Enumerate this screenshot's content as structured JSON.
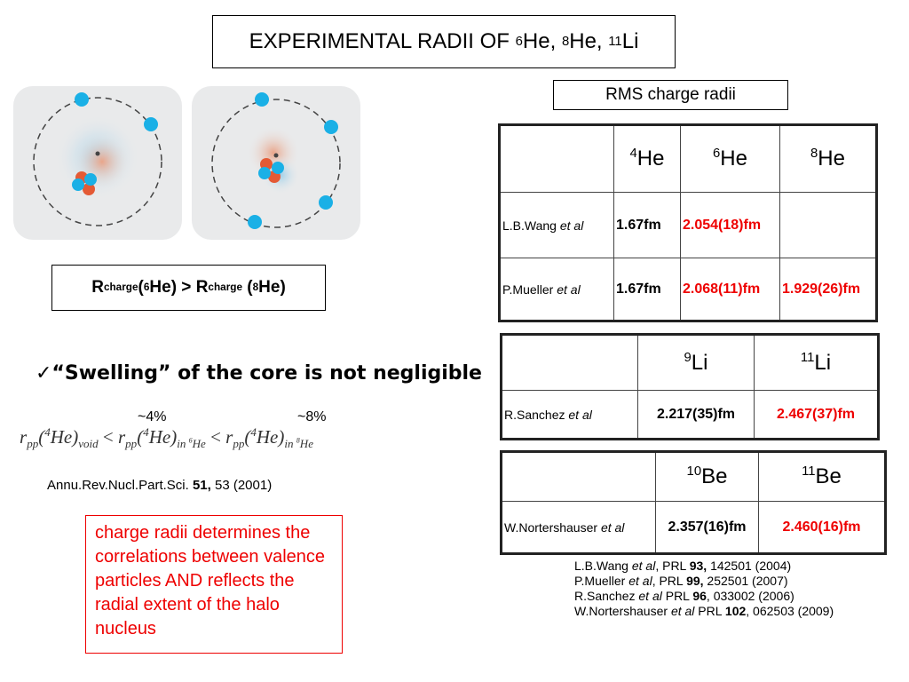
{
  "title": {
    "prefix": "EXPERIMENTAL RADII OF ",
    "items": [
      {
        "mass": "6",
        "sym": "He"
      },
      {
        "mass": "8",
        "sym": "He"
      },
      {
        "mass": "11",
        "sym": "Li"
      }
    ]
  },
  "rms_label": "RMS charge radii",
  "table_he": {
    "headers": [
      {
        "mass": "4",
        "sym": "He"
      },
      {
        "mass": "6",
        "sym": "He"
      },
      {
        "mass": "8",
        "sym": "He"
      }
    ],
    "rows": [
      {
        "author": "L.B.Wang",
        "etal": "et al",
        "v1": "1.67fm",
        "v2": "2.054(18)fm",
        "v3": ""
      },
      {
        "author": "P.Mueller",
        "etal": "et al",
        "v1": "1.67fm",
        "v2": "2.068(11)fm",
        "v3": "1.929(26)fm"
      }
    ]
  },
  "table_li": {
    "headers": [
      {
        "mass": "9",
        "sym": "Li"
      },
      {
        "mass": "11",
        "sym": "Li"
      }
    ],
    "author": "R.Sanchez",
    "etal": "et al",
    "v1": "2.217(35)fm",
    "v2": "2.467(37)fm"
  },
  "table_be": {
    "headers": [
      {
        "mass": "10",
        "sym": "Be"
      },
      {
        "mass": "11",
        "sym": "Be"
      }
    ],
    "author": "W.Nortershauser",
    "etal": "et al",
    "v1": "2.357(16)fm",
    "v2": "2.460(16)fm"
  },
  "rcharge": {
    "r": "R",
    "sub": "charge",
    "a_mass": "6",
    "a_sym": "He",
    "op": " > ",
    "b_mass": "8",
    "b_sym": "He"
  },
  "swelling": "✓“Swelling” of the core is not negligible",
  "pct1": "~4%",
  "pct2": "~8%",
  "formula": {
    "r": "r",
    "pp": "pp",
    "he": "He",
    "four": "4",
    "void": "void",
    "in": "in ",
    "six": "6",
    "eight": "8",
    "lt": " < "
  },
  "citation": {
    "journal": "Annu.Rev.Nucl.Part.Sci. ",
    "vol": "51,",
    "rest": " 53 (2001)"
  },
  "note": "charge radii determines the correlations between valence particles AND reflects the radial extent of the halo nucleus",
  "references": [
    {
      "a": "L.B.Wang ",
      "e": "et al",
      "j": ", PRL ",
      "v": "93,",
      "r": " 142501 (2004)"
    },
    {
      "a": "P.Mueller ",
      "e": "et al",
      "j": ", PRL ",
      "v": "99,",
      "r": " 252501 (2007)"
    },
    {
      "a": "R.Sanchez ",
      "e": "et al",
      "j": "  PRL ",
      "v": "96",
      "r": ", 033002 (2006)"
    },
    {
      "a": "W.Nortershauser ",
      "e": "et al",
      "j": "  PRL ",
      "v": "102",
      "r": ", 062503 (2009)"
    }
  ]
}
